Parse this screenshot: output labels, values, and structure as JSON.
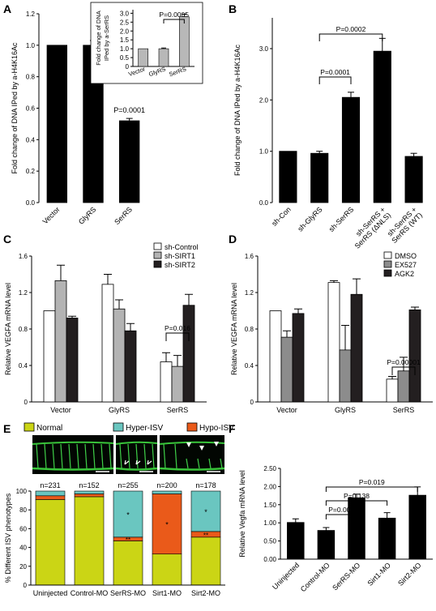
{
  "chart_data": [
    {
      "panel": "A",
      "type": "bar",
      "ylabel": "Fold change of DNA IPed by a-H4K16Ac",
      "categories": [
        "Vector",
        "GlyRS",
        "SerRS"
      ],
      "values": [
        1.0,
        1.0,
        0.52
      ],
      "errors": [
        0,
        0.03,
        0.015
      ],
      "ylim": [
        0,
        1.2
      ],
      "yticks": [
        "0.0",
        "0.2",
        "0.4",
        "0.6",
        "0.8",
        "1.0",
        "1.2"
      ],
      "annotations": [
        "P=0.0001"
      ],
      "inset": {
        "ylabel": "Fold change of DNA IPed by a-SerRS",
        "categories": [
          "Vector",
          "GlyRS",
          "SerRS"
        ],
        "values": [
          1.0,
          1.0,
          2.8
        ],
        "errors": [
          0,
          0.04,
          0.15
        ],
        "ylim": [
          0,
          3.2
        ],
        "yticks": [
          "0",
          "0.5",
          "1.0",
          "1.5",
          "2.0",
          "2.5",
          "3.0"
        ],
        "annotations": [
          "P=0.0005"
        ]
      }
    },
    {
      "panel": "B",
      "type": "bar",
      "ylabel": "Fold change of DNA IPed by a-H4K16Ac",
      "categories": [
        "sh-Con",
        "sh-GlyRS",
        "sh-SerRS",
        "sh-SerRS + SerRS (ΔNLS)",
        "sh-SerRS + SerRS (WT)"
      ],
      "values": [
        1.0,
        0.96,
        2.05,
        2.95,
        0.9
      ],
      "errors": [
        0,
        0.04,
        0.1,
        0.25,
        0.06
      ],
      "ylim": [
        0,
        3.6
      ],
      "yticks": [
        "0.0",
        "1.0",
        "2.0",
        "3.0"
      ],
      "annotations": [
        "P=0.0001",
        "P=0.0002"
      ]
    },
    {
      "panel": "C",
      "type": "bar",
      "ylabel": "Relative VEGFA mRNA level",
      "categories": [
        "Vector",
        "GlyRS",
        "SerRS"
      ],
      "series": [
        {
          "name": "sh-Control",
          "values": [
            1.0,
            1.29,
            0.44
          ],
          "errors": [
            0,
            0.11,
            0.1
          ]
        },
        {
          "name": "sh-SIRT1",
          "values": [
            1.33,
            1.02,
            0.39
          ],
          "errors": [
            0.17,
            0.1,
            0.12
          ]
        },
        {
          "name": "sh-SIRT2",
          "values": [
            0.92,
            0.78,
            1.06
          ],
          "errors": [
            0.02,
            0.08,
            0.12
          ]
        }
      ],
      "colors": [
        "#ffffff",
        "#b3b3b3",
        "#231f20"
      ],
      "ylim": [
        0,
        1.6
      ],
      "yticks": [
        "0",
        "0.4",
        "0.8",
        "1.2",
        "1.6"
      ],
      "annotations": [
        "P=0.016"
      ]
    },
    {
      "panel": "D",
      "type": "bar",
      "ylabel": "Relative VEGFA mRNA level",
      "categories": [
        "Vector",
        "GlyRS",
        "SerRS"
      ],
      "series": [
        {
          "name": "DMSO",
          "values": [
            1.0,
            1.31,
            0.25
          ],
          "errors": [
            0,
            0.02,
            0.03
          ]
        },
        {
          "name": "EX527",
          "values": [
            0.71,
            0.57,
            0.34
          ],
          "errors": [
            0.07,
            0.27,
            0.15
          ]
        },
        {
          "name": "AGK2",
          "values": [
            0.97,
            1.18,
            1.01
          ],
          "errors": [
            0.05,
            0.17,
            0.03
          ]
        }
      ],
      "colors": [
        "#ffffff",
        "#8c8c8c",
        "#231f20"
      ],
      "ylim": [
        0,
        1.6
      ],
      "yticks": [
        "0",
        "0.4",
        "0.8",
        "1.2",
        "1.6"
      ],
      "annotations": [
        "P=0.00001"
      ]
    },
    {
      "panel": "E",
      "type": "bar",
      "stacked": true,
      "ylabel": "% Different ISV phenotypes",
      "categories": [
        "Uninjected",
        "Control-MO",
        "SerRS-MO",
        "Sirt1-MO",
        "Sirt2-MO"
      ],
      "counts": [
        "n=231",
        "n=152",
        "n=255",
        "n=200",
        "n=178"
      ],
      "series": [
        {
          "name": "Normal",
          "values": [
            91,
            94,
            47,
            33,
            51
          ]
        },
        {
          "name": "Hypo-ISV",
          "values": [
            4,
            3,
            4,
            64,
            6
          ]
        },
        {
          "name": "Hyper-ISV",
          "values": [
            5,
            3,
            49,
            3,
            43
          ]
        }
      ],
      "colors": {
        "Normal": "#cbd515",
        "Hyper-ISV": "#6ac6c0",
        "Hypo-ISV": "#ea5a1a"
      },
      "legend": [
        "Normal",
        "Hyper-ISV",
        "Hypo-ISV"
      ],
      "ylim": [
        0,
        100
      ],
      "yticks": [
        "0",
        "20",
        "40",
        "60",
        "80",
        "100"
      ],
      "marks": [
        "*",
        "**",
        "*",
        "*",
        "**"
      ]
    },
    {
      "panel": "F",
      "type": "bar",
      "ylabel": "Relative Vegfa mRNA level",
      "categories": [
        "Uninjected",
        "Control-MO",
        "SerRS-MO",
        "Sirt1-MO",
        "Sirt2-MO"
      ],
      "values": [
        1.01,
        0.79,
        1.69,
        1.13,
        1.76
      ],
      "errors": [
        0.1,
        0.08,
        0.1,
        0.15,
        0.23
      ],
      "ylim": [
        0,
        2.5
      ],
      "yticks": [
        "0.00",
        "0.50",
        "1.00",
        "1.50",
        "2.00",
        "2.50"
      ],
      "annotations": [
        "P=0.002",
        "P=0.138",
        "P=0.019"
      ]
    }
  ],
  "panel_labels": [
    "A",
    "B",
    "C",
    "D",
    "E",
    "F"
  ]
}
